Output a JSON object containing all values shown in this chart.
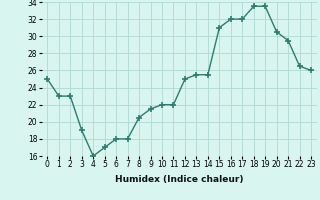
{
  "x": [
    0,
    1,
    2,
    3,
    4,
    5,
    6,
    7,
    8,
    9,
    10,
    11,
    12,
    13,
    14,
    15,
    16,
    17,
    18,
    19,
    20,
    21,
    22,
    23
  ],
  "y": [
    25,
    23,
    23,
    19,
    16,
    17,
    18,
    18,
    20.5,
    21.5,
    22,
    22,
    25,
    25.5,
    25.5,
    31,
    32,
    32,
    33.5,
    33.5,
    30.5,
    29.5,
    26.5,
    26
  ],
  "line_color": "#2d7d6f",
  "marker": "+",
  "marker_size": 4,
  "bg_color": "#d8f5f0",
  "grid_color": "#b0d8d4",
  "xlabel": "Humidex (Indice chaleur)",
  "ylim": [
    16,
    34
  ],
  "xlim": [
    -0.5,
    23.5
  ],
  "yticks": [
    16,
    18,
    20,
    22,
    24,
    26,
    28,
    30,
    32,
    34
  ],
  "xticks": [
    0,
    1,
    2,
    3,
    4,
    5,
    6,
    7,
    8,
    9,
    10,
    11,
    12,
    13,
    14,
    15,
    16,
    17,
    18,
    19,
    20,
    21,
    22,
    23
  ],
  "xlabel_fontsize": 6.5,
  "tick_fontsize": 5.5
}
